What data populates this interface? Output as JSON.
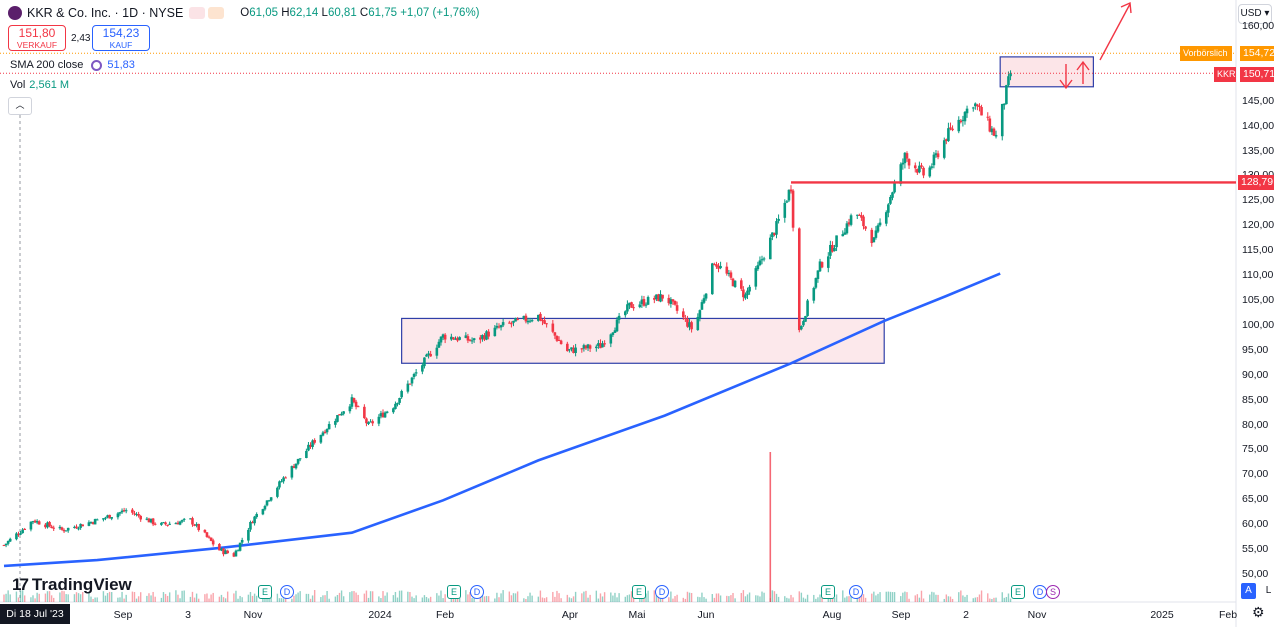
{
  "header": {
    "symbol_title": "KKR & Co. Inc. · 1D · NYSE",
    "ohlc": {
      "o_label": "O",
      "o": "61,05",
      "h_label": "H",
      "h": "62,14",
      "l_label": "L",
      "l": "60,81",
      "c_label": "C",
      "c": "61,75",
      "change": "+1,07 (+1,76%)"
    }
  },
  "trade": {
    "sell_price": "151,80",
    "sell_label": "VERKAUF",
    "spread": "2,43",
    "buy_price": "154,23",
    "buy_label": "KAUF"
  },
  "indicators": {
    "sma_label": "SMA 200 close",
    "sma_value": "51,83",
    "vol_label": "Vol",
    "vol_value": "2,561 M"
  },
  "currency": "USD",
  "price_tags": {
    "prepost_label": "Vorbörslich",
    "prepost_value": "154,72",
    "symbol_label": "KKR",
    "symbol_value": "150,71",
    "level_value": "128,79"
  },
  "y_axis_labels": [
    "160,00",
    "155,00",
    "150,00",
    "145,00",
    "140,00",
    "135,00",
    "130,00",
    "125,00",
    "120,00",
    "115,00",
    "110,00",
    "105,00",
    "100,00",
    "95,00",
    "90,00",
    "85,00",
    "80,00",
    "75,00",
    "70,00",
    "65,00",
    "60,00",
    "55,00",
    "50,00"
  ],
  "x_axis": {
    "crosshair_date": "Di 18 Jul '23",
    "labels": [
      "Sep",
      "3",
      "Nov",
      "2024",
      "Feb",
      "Apr",
      "Mai",
      "Jun",
      "Aug",
      "Sep",
      "2",
      "Nov",
      "2025",
      "Feb"
    ]
  },
  "events": [
    "E",
    "D",
    "E",
    "D",
    "E",
    "D",
    "E",
    "D",
    "E",
    "D",
    "E",
    "D",
    "S"
  ],
  "branding": "TradingView",
  "scale_buttons": {
    "auto": "A",
    "log": "L"
  },
  "colors": {
    "up": "#089981",
    "down": "#f23645",
    "sma": "#2962ff",
    "zone_fill": "#fbe0e4",
    "zone_border": "#2f3fa8",
    "prepost": "#ff9800"
  },
  "chart_data": {
    "type": "candlestick",
    "title": "KKR & Co. Inc. · 1D · NYSE",
    "x_range": [
      "2023-07-18",
      "2025-02-28"
    ],
    "ylim": [
      47,
      162
    ],
    "y_unit": "USD",
    "series": [
      {
        "name": "KKR",
        "kind": "price",
        "points": [
          [
            "2023-07-18",
            56
          ],
          [
            "2023-08-01",
            61
          ],
          [
            "2023-08-15",
            59
          ],
          [
            "2023-09-01",
            61
          ],
          [
            "2023-09-15",
            63
          ],
          [
            "2023-10-01",
            60
          ],
          [
            "2023-10-16",
            61
          ],
          [
            "2023-10-30",
            55
          ],
          [
            "2023-11-06",
            54
          ],
          [
            "2023-11-15",
            61
          ],
          [
            "2023-12-01",
            70
          ],
          [
            "2023-12-15",
            77
          ],
          [
            "2024-01-02",
            85
          ],
          [
            "2024-01-10",
            80
          ],
          [
            "2024-01-22",
            84
          ],
          [
            "2024-02-01",
            90
          ],
          [
            "2024-02-15",
            98
          ],
          [
            "2024-03-01",
            97
          ],
          [
            "2024-03-15",
            100
          ],
          [
            "2024-04-01",
            102
          ],
          [
            "2024-04-15",
            95
          ],
          [
            "2024-05-01",
            96
          ],
          [
            "2024-05-15",
            104
          ],
          [
            "2024-06-01",
            106
          ],
          [
            "2024-06-15",
            99
          ],
          [
            "2024-06-25",
            113
          ],
          [
            "2024-07-10",
            106
          ],
          [
            "2024-07-25",
            120
          ],
          [
            "2024-08-01",
            128
          ],
          [
            "2024-08-05",
            99
          ],
          [
            "2024-08-15",
            112
          ],
          [
            "2024-09-01",
            123
          ],
          [
            "2024-09-10",
            117
          ],
          [
            "2024-09-25",
            134
          ],
          [
            "2024-10-05",
            130
          ],
          [
            "2024-10-15",
            138
          ],
          [
            "2024-10-28",
            145
          ],
          [
            "2024-11-08",
            138
          ],
          [
            "2024-11-15",
            150.71
          ]
        ]
      },
      {
        "name": "SMA 200 close",
        "kind": "line",
        "points": [
          [
            "2023-07-18",
            51.83
          ],
          [
            "2023-09-01",
            53
          ],
          [
            "2023-11-01",
            55.5
          ],
          [
            "2024-01-02",
            58.5
          ],
          [
            "2024-02-15",
            65
          ],
          [
            "2024-04-01",
            73
          ],
          [
            "2024-06-01",
            82
          ],
          [
            "2024-08-01",
            92.5
          ],
          [
            "2024-09-15",
            101
          ],
          [
            "2024-10-15",
            106
          ],
          [
            "2024-11-10",
            110.5
          ]
        ]
      }
    ],
    "volume": [
      {
        "date": "2024-07-22",
        "value": 12,
        "note": "spike"
      }
    ],
    "annotations": {
      "horizontal_level": 128.79,
      "consolidation_zone": {
        "x": [
          "2024-01-26",
          "2024-09-15"
        ],
        "y": [
          92.5,
          101.5
        ]
      },
      "recent_zone": {
        "x": [
          "2024-11-10",
          "2024-12-25"
        ],
        "y": [
          148,
          154
        ]
      },
      "prepost_price": 154.72,
      "last_price": 150.71
    }
  }
}
